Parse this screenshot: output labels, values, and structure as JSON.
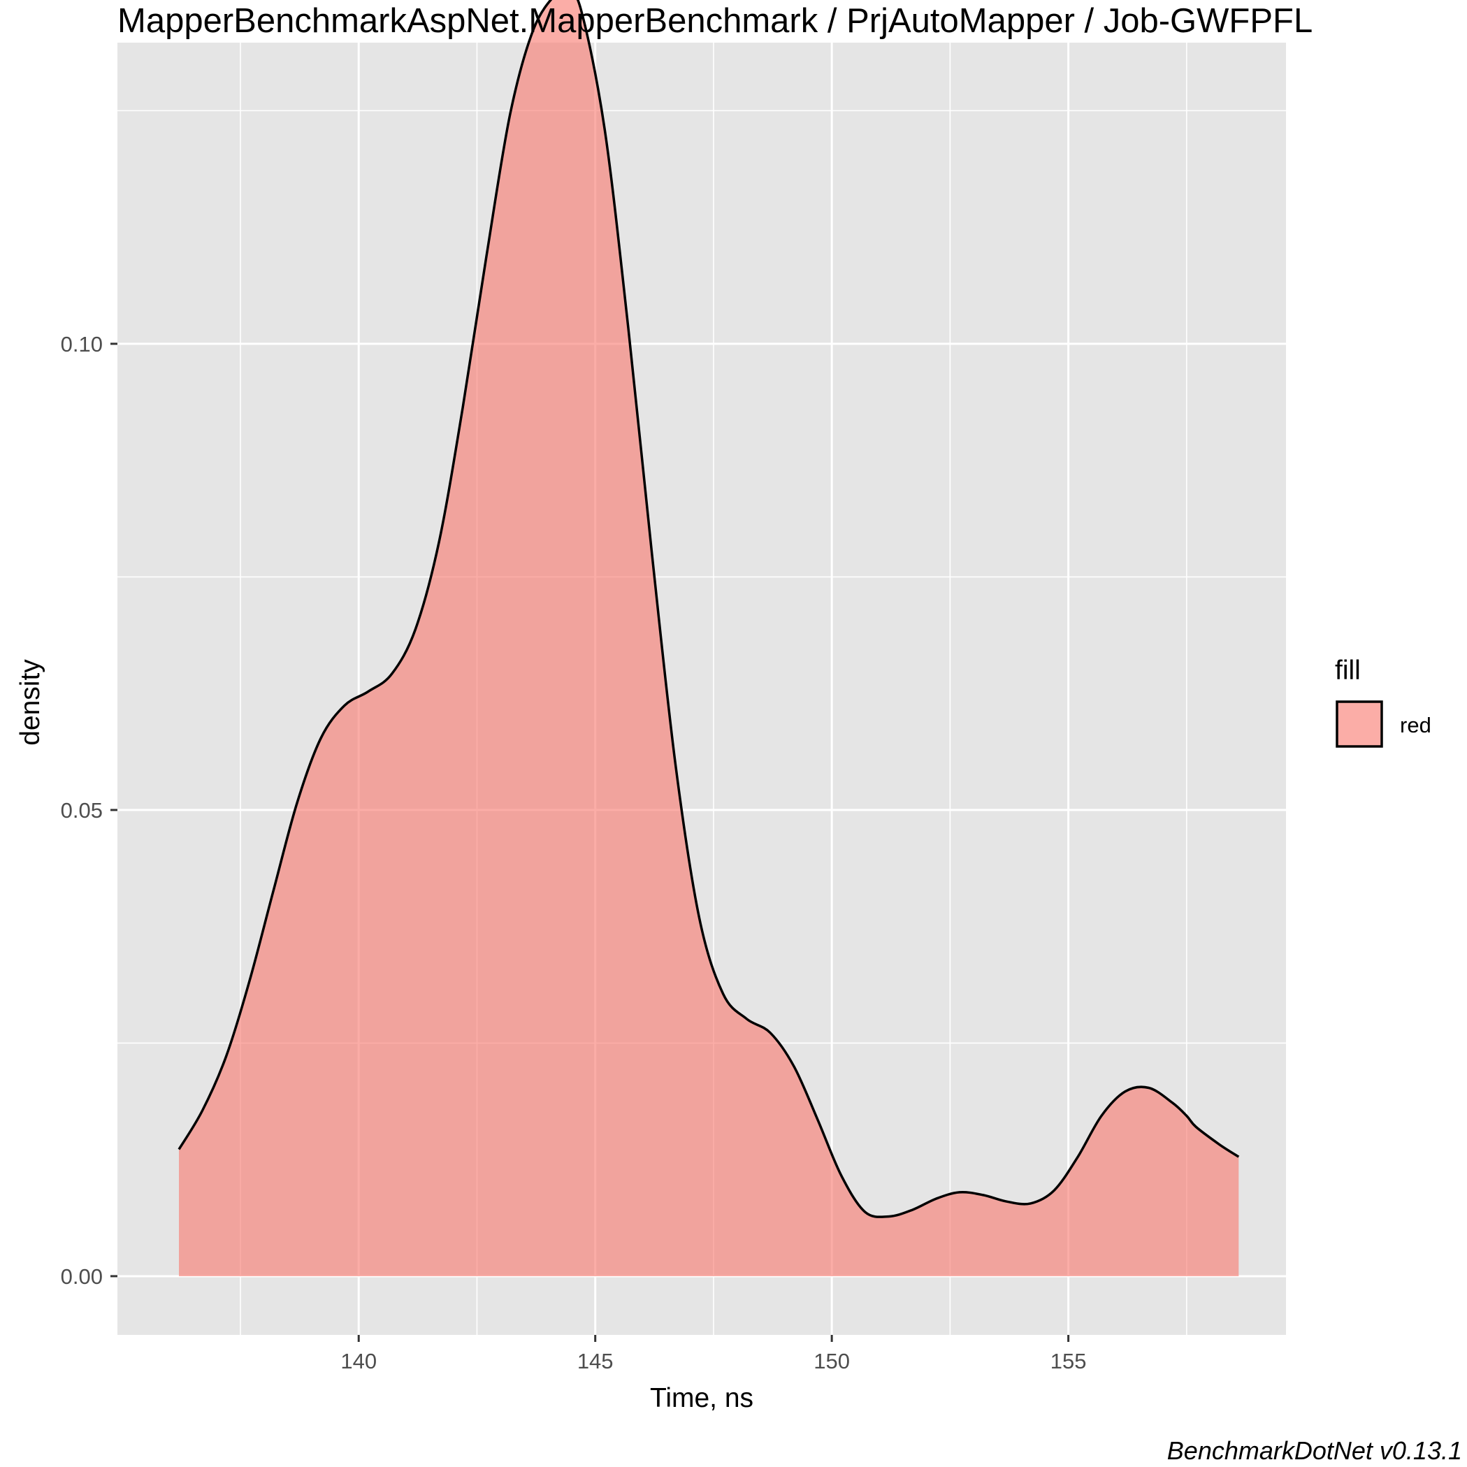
{
  "chart_data": {
    "type": "area",
    "title": "MapperBenchmarkAspNet.MapperBenchmark / PrjAutoMapper / Job-GWFPFL",
    "xlabel": "Time, ns",
    "ylabel": "density",
    "caption": "BenchmarkDotNet v0.13.1",
    "xlim": [
      134.9,
      159.6
    ],
    "ylim": [
      -0.0063,
      0.1323
    ],
    "x_ticks": [
      140,
      145,
      150,
      155
    ],
    "x_tick_labels": [
      "140",
      "145",
      "150",
      "155"
    ],
    "y_ticks": [
      0.0,
      0.05,
      0.1
    ],
    "y_tick_labels": [
      "0.00",
      "0.05",
      "0.10"
    ],
    "grid": true,
    "legend": {
      "title": "fill",
      "position": "right",
      "entries": [
        {
          "label": "red",
          "color": "#F8766D"
        }
      ]
    },
    "fill_color": "#F8766D",
    "fill_opacity": 0.6,
    "panel_background": "#E5E5E5",
    "series": [
      {
        "x": [
          136.2,
          136.7,
          137.2,
          137.7,
          138.2,
          138.7,
          139.2,
          139.7,
          140.2,
          140.7,
          141.2,
          141.7,
          142.2,
          142.7,
          143.2,
          143.7,
          144.2,
          144.4,
          144.7,
          145.2,
          145.7,
          146.2,
          146.7,
          147.2,
          147.7,
          148.2,
          148.7,
          149.2,
          149.7,
          150.2,
          150.7,
          151.2,
          151.7,
          152.2,
          152.7,
          153.2,
          153.7,
          154.2,
          154.7,
          155.2,
          155.7,
          156.2,
          156.7,
          157.2,
          157.5,
          157.7,
          158.2,
          158.6
        ],
        "y": [
          0.0136,
          0.0178,
          0.0236,
          0.0318,
          0.0414,
          0.0508,
          0.0577,
          0.0612,
          0.0627,
          0.0646,
          0.0694,
          0.0788,
          0.0932,
          0.1094,
          0.1246,
          0.1338,
          0.1377,
          0.138,
          0.1358,
          0.123,
          0.1016,
          0.0774,
          0.0547,
          0.0384,
          0.0303,
          0.0276,
          0.0261,
          0.0225,
          0.0168,
          0.0108,
          0.0069,
          0.0064,
          0.0071,
          0.0083,
          0.009,
          0.0087,
          0.008,
          0.0078,
          0.0092,
          0.0128,
          0.0172,
          0.0198,
          0.0202,
          0.0186,
          0.0172,
          0.016,
          0.0141,
          0.0128
        ]
      }
    ]
  }
}
